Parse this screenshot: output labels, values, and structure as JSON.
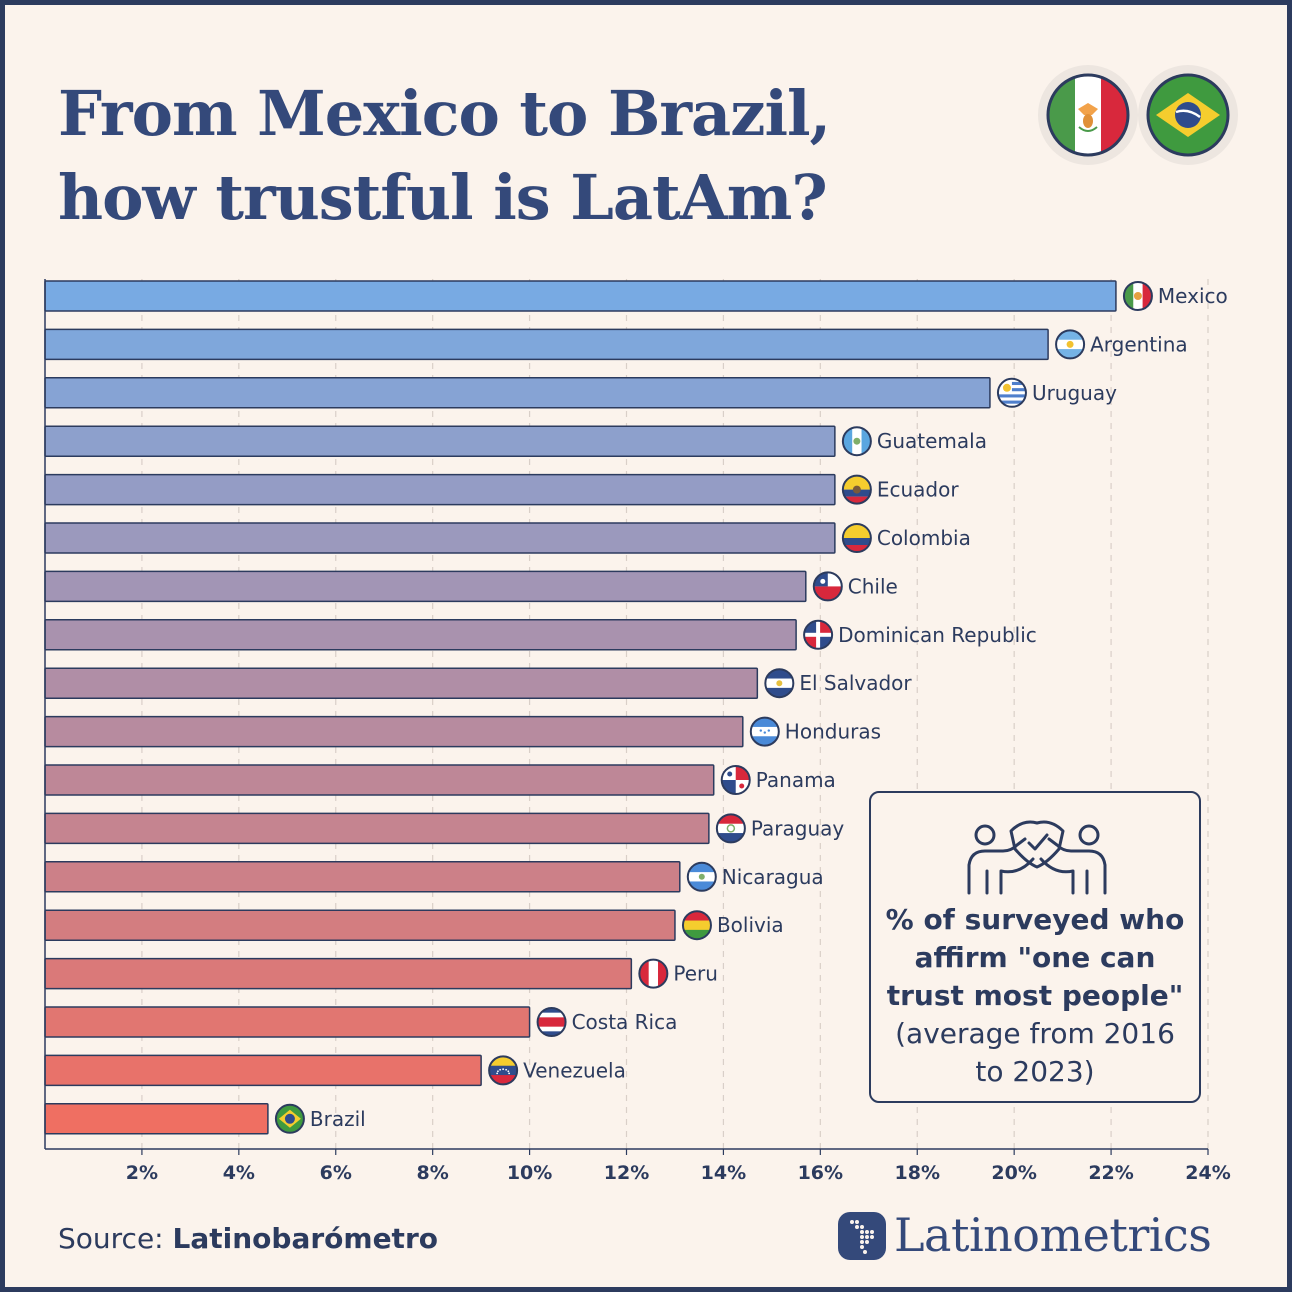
{
  "title": {
    "line1": "From Mexico to Brazil,",
    "line2": "how trustful is LatAm?"
  },
  "hero_flags": [
    "mexico-flag-icon",
    "brazil-flag-icon"
  ],
  "legend": {
    "icon": "trust-people-icon",
    "bold_text": "% of surveyed who affirm \"one can trust most people\"",
    "normal_text": " (average from 2016 to 2023)"
  },
  "source": {
    "label": "Source: ",
    "name": "Latinobarómetro"
  },
  "brand": {
    "name": "Latinometrics",
    "logo_icon": "latin-america-map-icon"
  },
  "colors": {
    "text": "#2c3b5e",
    "title": "#34497a",
    "bar_top": "#78aae3",
    "bar_bottom": "#ef6f62",
    "background": "#fbf3ec"
  },
  "chart_data": {
    "type": "bar",
    "orientation": "horizontal",
    "categories": [
      "Mexico",
      "Argentina",
      "Uruguay",
      "Guatemala",
      "Ecuador",
      "Colombia",
      "Chile",
      "Dominican Republic",
      "El Salvador",
      "Honduras",
      "Panama",
      "Paraguay",
      "Nicaragua",
      "Bolivia",
      "Peru",
      "Costa Rica",
      "Venezuela",
      "Brazil"
    ],
    "values": [
      22.1,
      20.7,
      19.5,
      16.3,
      16.3,
      16.3,
      15.7,
      15.5,
      14.7,
      14.4,
      13.8,
      13.7,
      13.1,
      13.0,
      12.1,
      10.0,
      9.0,
      4.6
    ],
    "flag_icons": [
      "mexico-flag-icon",
      "argentina-flag-icon",
      "uruguay-flag-icon",
      "guatemala-flag-icon",
      "ecuador-flag-icon",
      "colombia-flag-icon",
      "chile-flag-icon",
      "dominican-republic-flag-icon",
      "el-salvador-flag-icon",
      "honduras-flag-icon",
      "panama-flag-icon",
      "paraguay-flag-icon",
      "nicaragua-flag-icon",
      "bolivia-flag-icon",
      "peru-flag-icon",
      "costa-rica-flag-icon",
      "venezuela-flag-icon",
      "brazil-flag-icon"
    ],
    "xlim": [
      0,
      24
    ],
    "xticks": [
      2,
      4,
      6,
      8,
      10,
      12,
      14,
      16,
      18,
      20,
      22,
      24
    ],
    "tick_labels": [
      "2%",
      "4%",
      "6%",
      "8%",
      "10%",
      "12%",
      "14%",
      "16%",
      "18%",
      "20%",
      "22%",
      "24%"
    ],
    "grid": true,
    "title": "From Mexico to Brazil, how trustful is LatAm?",
    "xlabel": "",
    "ylabel": ""
  }
}
